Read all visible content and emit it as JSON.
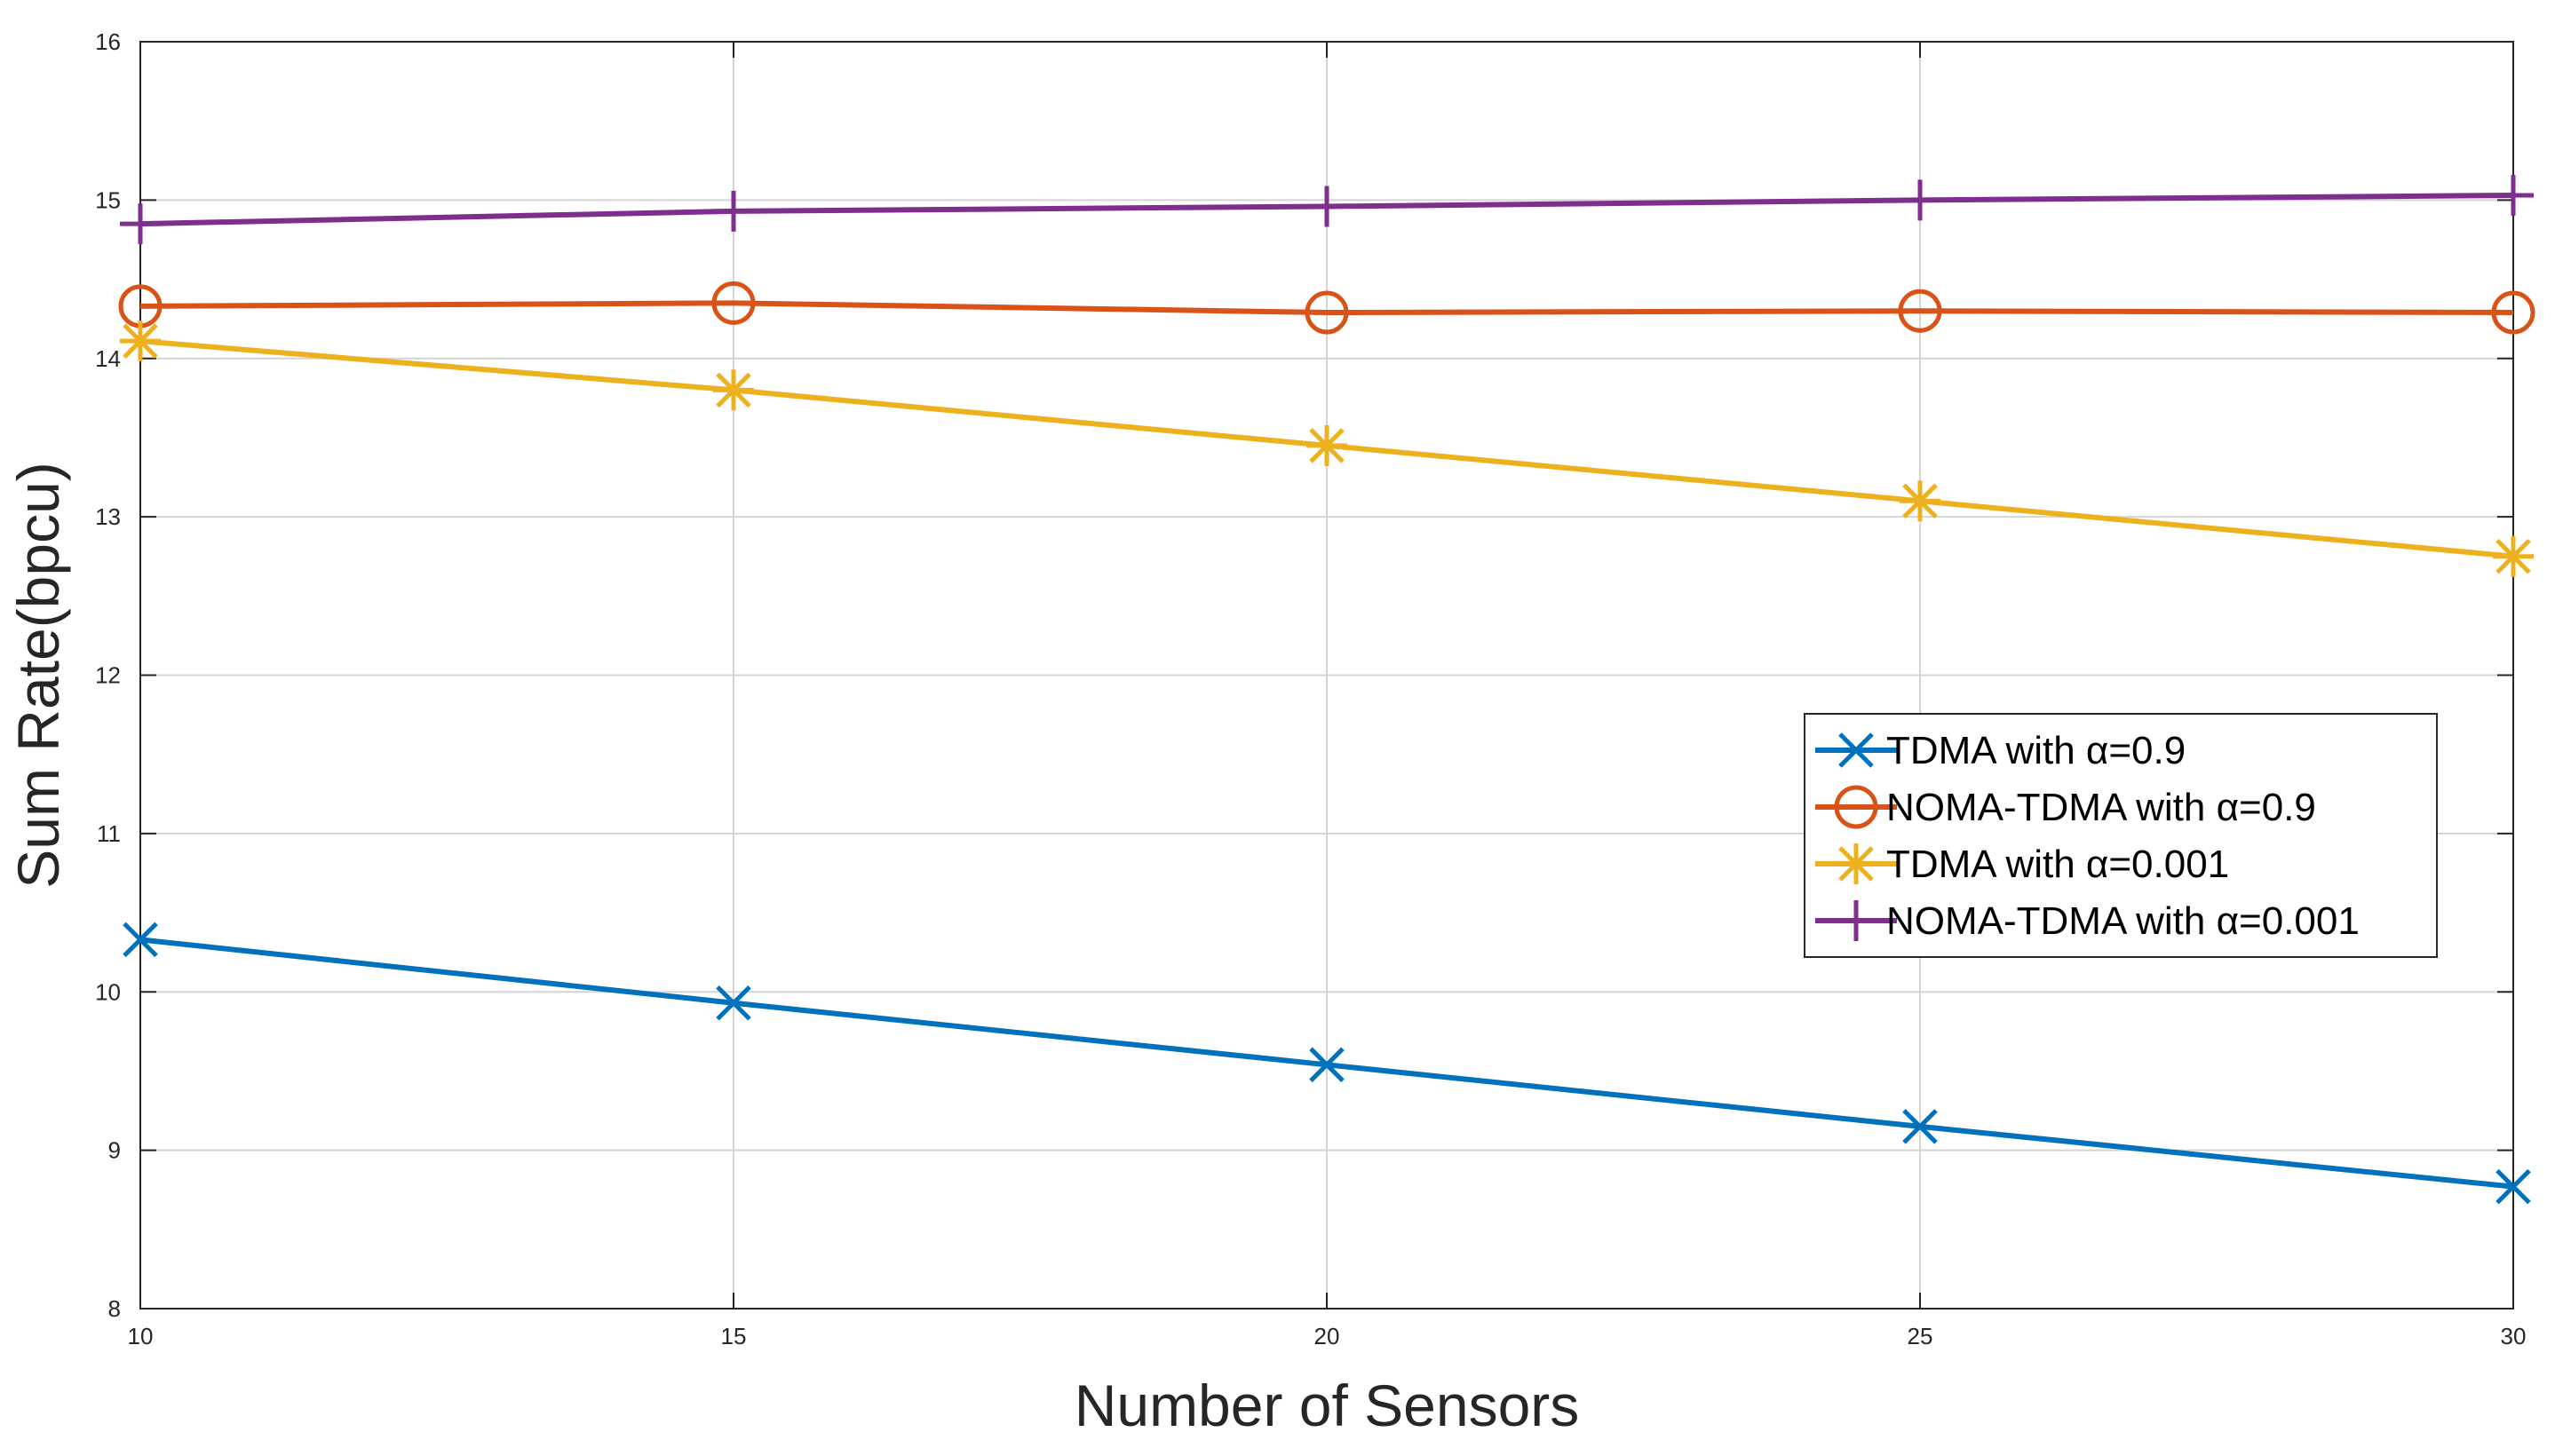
{
  "chart_data": {
    "type": "line",
    "title": "",
    "xlabel": "Number of Sensors",
    "ylabel": "Sum Rate(bpcu)",
    "xlim": [
      10,
      30
    ],
    "ylim": [
      8,
      16
    ],
    "xticks": [
      10,
      15,
      20,
      25,
      30
    ],
    "yticks": [
      8,
      9,
      10,
      11,
      12,
      13,
      14,
      15,
      16
    ],
    "grid": true,
    "legend_position": "center-right",
    "x": [
      10,
      15,
      20,
      25,
      30
    ],
    "series": [
      {
        "name": "TDMA with α=0.9",
        "marker": "x",
        "color": "#0072BD",
        "values": [
          10.33,
          9.93,
          9.54,
          9.15,
          8.77
        ]
      },
      {
        "name": "NOMA-TDMA with α=0.9",
        "marker": "o",
        "color": "#D95319",
        "values": [
          14.33,
          14.35,
          14.29,
          14.3,
          14.29
        ]
      },
      {
        "name": "TDMA with α=0.001",
        "marker": "*",
        "color": "#EDB120",
        "values": [
          14.11,
          13.8,
          13.45,
          13.1,
          12.75
        ]
      },
      {
        "name": "NOMA-TDMA with α=0.001",
        "marker": "+",
        "color": "#7E2F8E",
        "values": [
          14.85,
          14.93,
          14.96,
          15.0,
          15.03
        ]
      }
    ]
  }
}
